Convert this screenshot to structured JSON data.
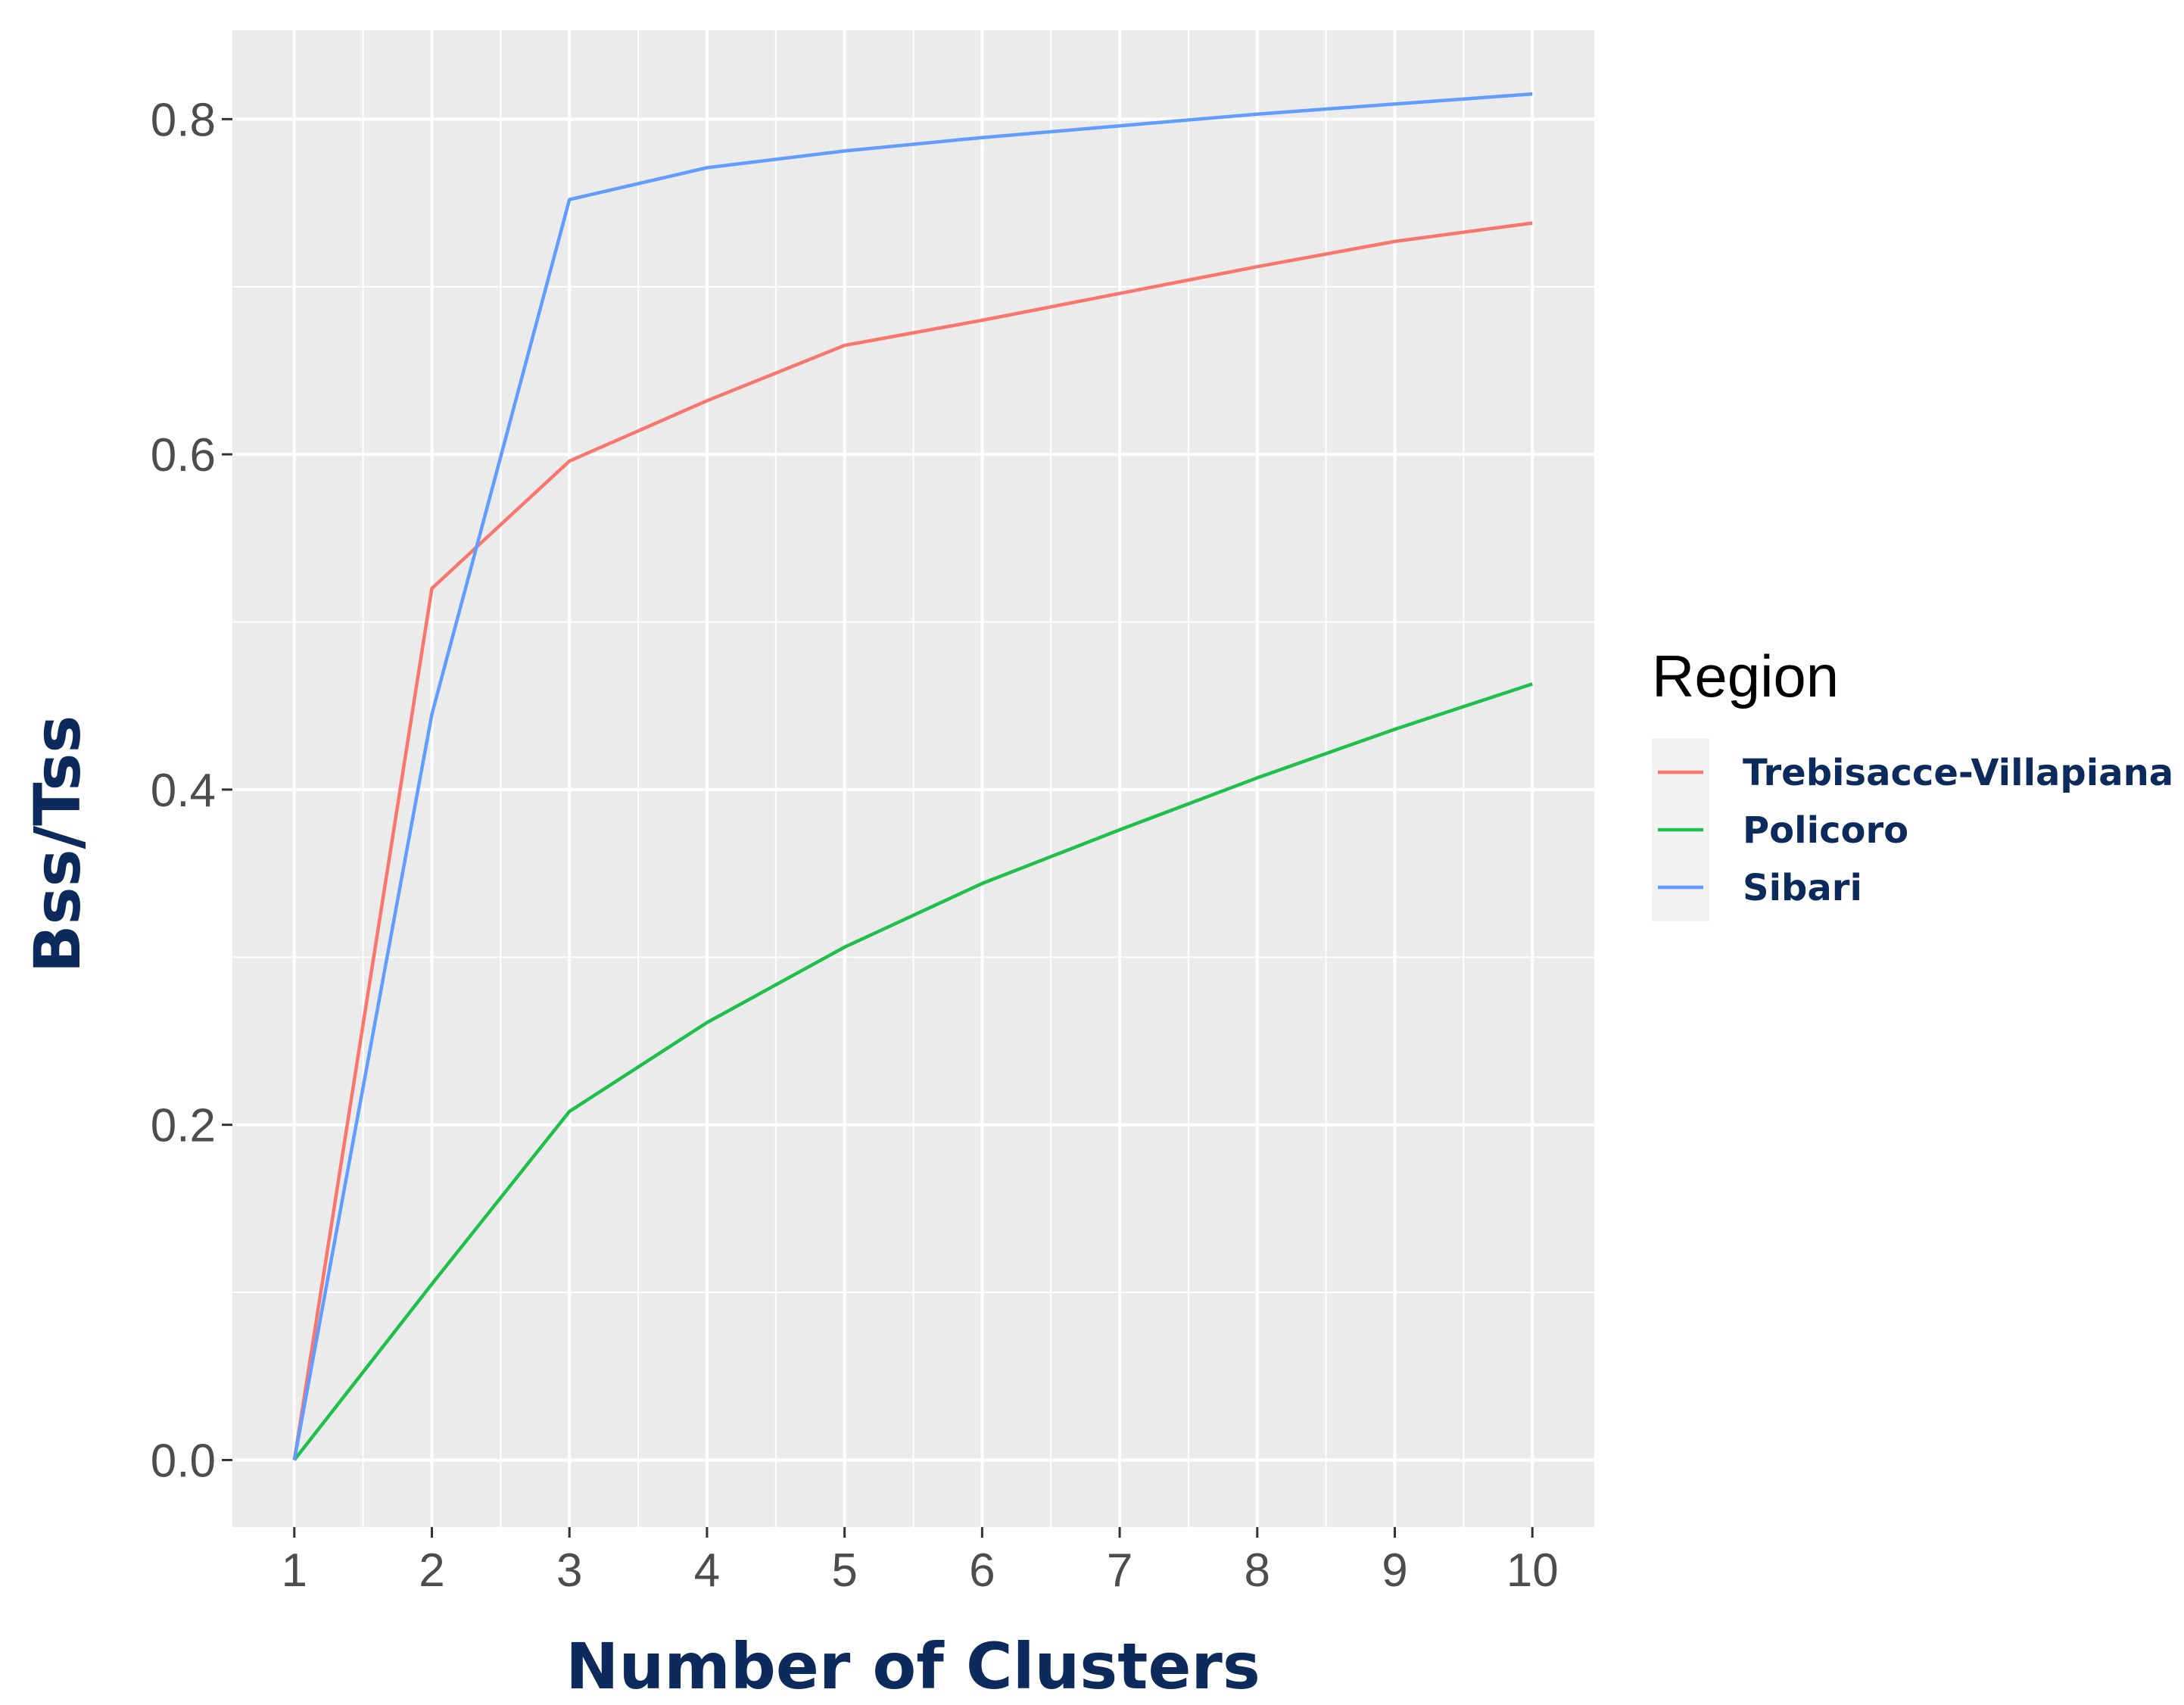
{
  "chart_data": {
    "type": "line",
    "x": [
      1,
      2,
      3,
      4,
      5,
      6,
      7,
      8,
      9,
      10
    ],
    "series": [
      {
        "name": "Trebisacce-Villapiana",
        "color": "#f8766d",
        "values": [
          0.0,
          0.52,
          0.596,
          0.632,
          0.665,
          0.68,
          0.696,
          0.712,
          0.727,
          0.738
        ]
      },
      {
        "name": "Policoro",
        "color": "#1fbf4c",
        "values": [
          0.0,
          0.105,
          0.208,
          0.261,
          0.306,
          0.344,
          0.376,
          0.407,
          0.436,
          0.463
        ]
      },
      {
        "name": "Sibari",
        "color": "#619cff",
        "values": [
          0.0,
          0.445,
          0.752,
          0.771,
          0.781,
          0.789,
          0.796,
          0.803,
          0.809,
          0.815
        ]
      }
    ],
    "xlabel": "Number of Clusters",
    "ylabel": "Bss/Tss",
    "xlim": [
      0.55,
      10.45
    ],
    "ylim": [
      -0.04,
      0.853
    ],
    "xticks": [
      "1",
      "2",
      "3",
      "4",
      "5",
      "6",
      "7",
      "8",
      "9",
      "10"
    ],
    "yticks": [
      "0.0",
      "0.2",
      "0.4",
      "0.6",
      "0.8"
    ],
    "ytick_values": [
      0.0,
      0.2,
      0.4,
      0.6,
      0.8
    ],
    "grid": true,
    "panel_background": "#ebebeb",
    "legend": {
      "title": "Region",
      "position": "right"
    }
  }
}
